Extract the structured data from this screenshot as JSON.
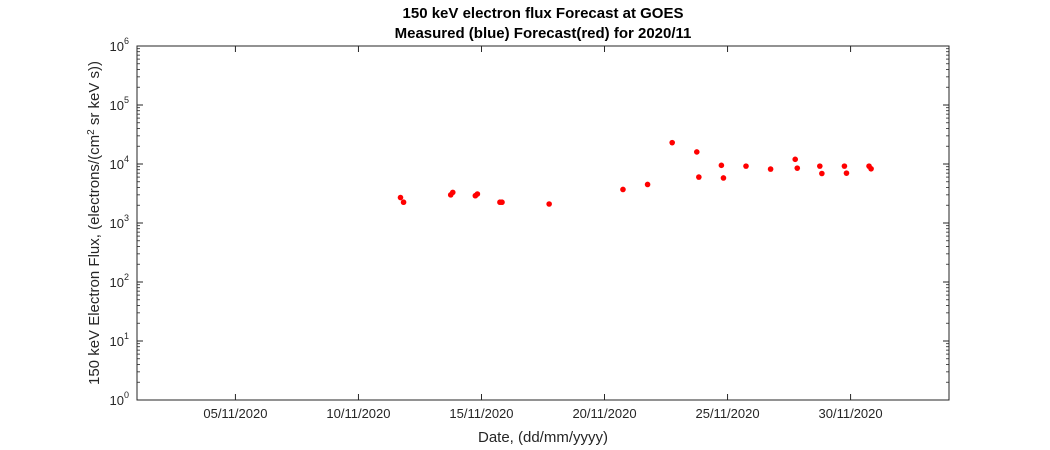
{
  "colors": {
    "forecast": "#ff0000",
    "axis": "#262626",
    "background": "#ffffff"
  },
  "chart_data": {
    "type": "scatter",
    "title": "150 keV electron flux Forecast at GOES",
    "subtitle": "Measured (blue) Forecast(red) for 2020/11",
    "xlabel": "Date, (dd/mm/yyyy)",
    "ylabel": {
      "prefix": "150 keV Electron Flux, (electrons/(cm",
      "superscript": "2",
      "suffix": " sr keV s))"
    },
    "x_scale": "date",
    "y_scale": "log",
    "xlim": [
      "2020-11-01",
      "2020-12-04"
    ],
    "ylim": [
      1,
      1000000
    ],
    "x_ticks": [
      {
        "value": "2020-11-05",
        "label": "05/11/2020"
      },
      {
        "value": "2020-11-10",
        "label": "10/11/2020"
      },
      {
        "value": "2020-11-15",
        "label": "15/11/2020"
      },
      {
        "value": "2020-11-20",
        "label": "20/11/2020"
      },
      {
        "value": "2020-11-25",
        "label": "25/11/2020"
      },
      {
        "value": "2020-11-30",
        "label": "30/11/2020"
      }
    ],
    "y_ticks": [
      {
        "value": 1,
        "base": "10",
        "exp": "0"
      },
      {
        "value": 10,
        "base": "10",
        "exp": "1"
      },
      {
        "value": 100,
        "base": "10",
        "exp": "2"
      },
      {
        "value": 1000,
        "base": "10",
        "exp": "3"
      },
      {
        "value": 10000,
        "base": "10",
        "exp": "4"
      },
      {
        "value": 100000,
        "base": "10",
        "exp": "5"
      },
      {
        "value": 1000000,
        "base": "10",
        "exp": "6"
      }
    ],
    "grid": false,
    "legend": "none",
    "series": [
      {
        "color": "#ff0000",
        "points": [
          {
            "x": "2020-11-11T17:00",
            "y": 2700
          },
          {
            "x": "2020-11-11T20:00",
            "y": 2250
          },
          {
            "x": "2020-11-13T18:00",
            "y": 3000
          },
          {
            "x": "2020-11-13T20:00",
            "y": 3300
          },
          {
            "x": "2020-11-14T18:00",
            "y": 2900
          },
          {
            "x": "2020-11-14T20:00",
            "y": 3100
          },
          {
            "x": "2020-11-15T18:00",
            "y": 2250
          },
          {
            "x": "2020-11-15T20:00",
            "y": 2250
          },
          {
            "x": "2020-11-17T18:00",
            "y": 2100
          },
          {
            "x": "2020-11-20T18:00",
            "y": 3700
          },
          {
            "x": "2020-11-21T18:00",
            "y": 4500
          },
          {
            "x": "2020-11-22T18:00",
            "y": 23000
          },
          {
            "x": "2020-11-23T18:00",
            "y": 16000
          },
          {
            "x": "2020-11-23T20:00",
            "y": 6000
          },
          {
            "x": "2020-11-24T18:00",
            "y": 9500
          },
          {
            "x": "2020-11-24T20:00",
            "y": 5800
          },
          {
            "x": "2020-11-25T18:00",
            "y": 9200
          },
          {
            "x": "2020-11-26T18:00",
            "y": 8200
          },
          {
            "x": "2020-11-27T18:00",
            "y": 12000
          },
          {
            "x": "2020-11-27T20:00",
            "y": 8500
          },
          {
            "x": "2020-11-28T18:00",
            "y": 9200
          },
          {
            "x": "2020-11-28T20:00",
            "y": 6900
          },
          {
            "x": "2020-11-29T18:00",
            "y": 9200
          },
          {
            "x": "2020-11-29T20:00",
            "y": 7000
          },
          {
            "x": "2020-11-30T18:00",
            "y": 9200
          },
          {
            "x": "2020-11-30T20:00",
            "y": 8300
          }
        ]
      }
    ]
  }
}
